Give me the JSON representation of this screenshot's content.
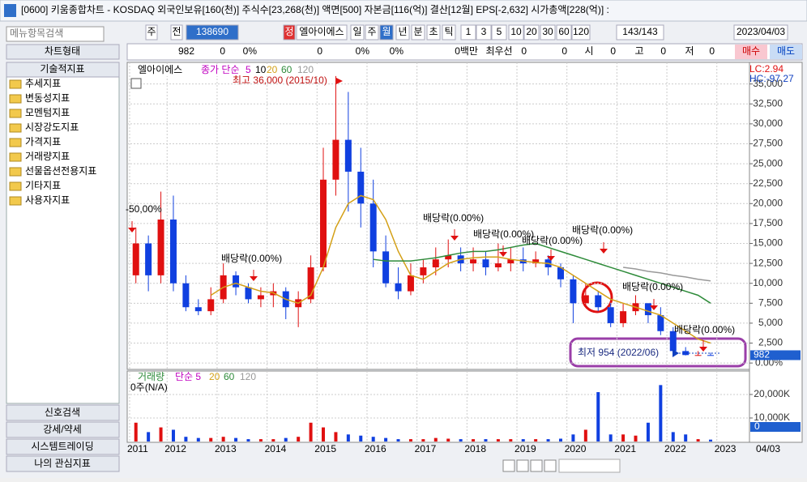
{
  "title_bar": {
    "title": "[0600] 키움종합차트 - KOSDAQ 외국인보유[160(천)] 주식수[23,268(천)] 액면[500] 자본금[116(억)] 결산[12월] EPS[-2,632] 시가총액[228(억)] :"
  },
  "toolbar": {
    "items": [
      "주",
      "전",
      "138690",
      "정",
      "엘아이에스",
      "일",
      "주",
      "월",
      "년",
      "분",
      "초",
      "틱",
      "1",
      "3",
      "5",
      "10",
      "20",
      "30",
      "60",
      "120",
      "143/143",
      "2023/04/03"
    ]
  },
  "info_row": {
    "items": [
      "982",
      "0",
      "0%",
      "0",
      "0%",
      "0%",
      "0백만",
      "최우선",
      "0",
      "0",
      "시",
      "0",
      "고",
      "0",
      "저",
      "0",
      "매수",
      "매도"
    ]
  },
  "sidebar": {
    "search": "메뉴항목검색",
    "chart_type": "차트형태",
    "section": "기술적지표",
    "folders": [
      "추세지표",
      "변동성지표",
      "모멘텀지표",
      "시장강도지표",
      "가격지표",
      "거래량지표",
      "선물옵션전용지표",
      "기타지표",
      "사용자지표"
    ],
    "bottom_buttons": [
      "신호검색",
      "강세/약세",
      "시스템트레이딩",
      "나의 관심지표"
    ]
  },
  "price_chart": {
    "type": "candlestick",
    "legend": [
      {
        "text": "엘아이에스",
        "color": "#000000"
      },
      {
        "text": "종가 단순",
        "color": "#c000c0"
      },
      {
        "text": "5",
        "color": "#c000c0"
      },
      {
        "text": "10",
        "color": "#000000"
      }
    ],
    "categories": [
      "2011",
      null,
      null,
      "2012",
      null,
      null,
      null,
      "2013",
      null,
      null,
      null,
      "2014",
      null,
      null,
      null,
      "2015",
      null,
      null,
      null,
      "2016",
      null,
      null,
      null,
      "2017",
      null,
      null,
      null,
      "2018",
      null,
      null,
      null,
      "2019",
      null,
      null,
      null,
      "2020",
      null,
      null,
      null,
      "2021",
      null,
      null,
      null,
      "2022",
      null,
      null,
      null,
      "2023"
    ],
    "x_end_label": "04/03",
    "open": [
      11000,
      15000,
      11000,
      18000,
      10000,
      7000,
      6500,
      8000,
      11000,
      9500,
      8000,
      8500,
      9000,
      7000,
      8000,
      12000,
      23000,
      28000,
      24000,
      20000,
      14000,
      10000,
      9000,
      11000,
      12000,
      13000,
      13500,
      12500,
      13000,
      12000,
      12500,
      13000,
      12500,
      13000,
      12000,
      10500,
      7500,
      8500,
      7000,
      5000,
      6500,
      7500,
      6000,
      4000,
      1500,
      1000,
      1000,
      null
    ],
    "high": [
      17000,
      16000,
      21500,
      21000,
      11000,
      8000,
      9500,
      12500,
      11500,
      10000,
      9500,
      10000,
      9500,
      9000,
      13500,
      27000,
      36000,
      34000,
      27000,
      23000,
      16000,
      12000,
      12500,
      13000,
      14500,
      15500,
      14500,
      14500,
      14000,
      15000,
      14500,
      14500,
      14000,
      13500,
      12500,
      11000,
      10000,
      9000,
      7500,
      7500,
      8500,
      7500,
      7000,
      4500,
      2000,
      1500,
      1300,
      null
    ],
    "low": [
      10000,
      9000,
      10000,
      9000,
      6500,
      6000,
      6000,
      7500,
      8500,
      7500,
      7000,
      7000,
      5500,
      4500,
      7500,
      11500,
      21000,
      19000,
      17000,
      12000,
      9500,
      8000,
      8500,
      10000,
      11000,
      12000,
      11500,
      11500,
      11000,
      11500,
      11500,
      11500,
      12000,
      11000,
      9500,
      5000,
      7000,
      6500,
      4500,
      4500,
      6000,
      5000,
      3500,
      1000,
      954,
      960,
      960,
      null
    ],
    "close": [
      15000,
      11000,
      18000,
      10000,
      7000,
      6500,
      8000,
      11000,
      9500,
      8000,
      8500,
      9000,
      7000,
      8000,
      12000,
      23000,
      28000,
      24000,
      20000,
      14000,
      10000,
      9000,
      11000,
      12000,
      13000,
      13500,
      12500,
      13000,
      12000,
      12500,
      13000,
      12500,
      13000,
      12000,
      10500,
      7500,
      8500,
      7000,
      5000,
      6500,
      7500,
      6000,
      4000,
      1500,
      1000,
      1000,
      982,
      null
    ],
    "up_color": "#e01010",
    "down_color": "#1040e0",
    "series": [
      {
        "name": "20",
        "color": "#d4a017",
        "values": [
          null,
          null,
          null,
          null,
          null,
          null,
          8500,
          9500,
          10000,
          9500,
          9000,
          8800,
          8000,
          7500,
          8500,
          12000,
          17000,
          20000,
          21000,
          20500,
          18000,
          14000,
          11000,
          10500,
          11500,
          12500,
          13000,
          13200,
          13300,
          13300,
          13000,
          12800,
          12600,
          12500,
          12000,
          11000,
          10000,
          9000,
          8000,
          7500,
          7000,
          6500,
          6000,
          5000,
          4000,
          3000,
          2500,
          null
        ]
      },
      {
        "name": "60",
        "color": "#2e8b3a",
        "values": [
          null,
          null,
          null,
          null,
          null,
          null,
          null,
          null,
          null,
          null,
          null,
          null,
          null,
          null,
          null,
          null,
          null,
          null,
          null,
          13000,
          12800,
          12800,
          12800,
          13000,
          13200,
          13500,
          13800,
          14000,
          14000,
          14200,
          14500,
          14800,
          15000,
          14500,
          14000,
          13500,
          13000,
          12500,
          12000,
          11500,
          11000,
          10500,
          10000,
          9500,
          9000,
          8500,
          7500,
          null
        ]
      },
      {
        "name": "120",
        "color": "#999999",
        "values": [
          null,
          null,
          null,
          null,
          null,
          null,
          null,
          null,
          null,
          null,
          null,
          null,
          null,
          null,
          null,
          null,
          null,
          null,
          null,
          null,
          null,
          null,
          null,
          null,
          null,
          null,
          null,
          null,
          null,
          null,
          null,
          null,
          null,
          null,
          null,
          null,
          null,
          null,
          null,
          12000,
          11800,
          11500,
          11300,
          11000,
          10800,
          10500,
          10300,
          null
        ]
      }
    ],
    "ylim": [
      -800,
      37000
    ],
    "yticks": [
      {
        "value": 0,
        "label": "0.00%"
      },
      {
        "value": 2500,
        "label": "2,500"
      },
      {
        "value": 5000,
        "label": "5,000"
      },
      {
        "value": 7500,
        "label": "7,500"
      },
      {
        "value": 10000,
        "label": "10,000"
      },
      {
        "value": 12500,
        "label": "12,500"
      },
      {
        "value": 15000,
        "label": "15,000"
      },
      {
        "value": 17500,
        "label": "17,500"
      },
      {
        "value": 20000,
        "label": "20,000"
      },
      {
        "value": 22500,
        "label": "22,500"
      },
      {
        "value": 25000,
        "label": "25,000"
      },
      {
        "value": 27500,
        "label": "27,500"
      },
      {
        "value": 30000,
        "label": "30,000"
      },
      {
        "value": 32500,
        "label": "32,500"
      },
      {
        "value": 35000,
        "label": "35,000"
      }
    ],
    "grid": true,
    "current_value": 982,
    "scale_notes": [
      "LC:2.94",
      "HC:-97.27"
    ],
    "high_label": "최고 36,000 (2015/10)",
    "low_label": "최저 954 (2022/06)",
    "change_label": "-50,00%",
    "dividend_labels": [
      "배당락(0.00%)",
      "배당락(0.00%)",
      "배당락(0.00%)",
      "배당락(0.00%)",
      "배당락(0.00%)",
      "배당락(0.00%)",
      "배당락(0.00%)"
    ]
  },
  "volume_chart": {
    "type": "bar",
    "legend": [
      {
        "text": "거래량",
        "color": "#2e8b3a"
      },
      {
        "text": "단순 5",
        "color": "#c000c0"
      },
      {
        "text": "20",
        "color": "#d4a017"
      },
      {
        "text": "60",
        "color": "#2e8b3a"
      },
      {
        "text": "120",
        "color": "#999999"
      }
    ],
    "sub_label": "0주(N/A)",
    "values": [
      8000,
      4000,
      6000,
      5000,
      2000,
      1500,
      1500,
      2000,
      1500,
      1000,
      1000,
      1000,
      1500,
      2000,
      8000,
      6000,
      4000,
      3000,
      2500,
      2000,
      1500,
      1000,
      1000,
      1000,
      1500,
      1200,
      1000,
      1000,
      1000,
      1000,
      1000,
      1000,
      1000,
      1000,
      1200,
      3000,
      5000,
      21000,
      3000,
      3000,
      2500,
      8000,
      24000,
      4000,
      3000,
      1000,
      800,
      null
    ],
    "ylim": [
      0,
      28600
    ],
    "yticks": [
      {
        "value": 10000,
        "label": "10,000K"
      },
      {
        "value": 20000,
        "label": "20,000K"
      }
    ],
    "current_label": "0"
  }
}
